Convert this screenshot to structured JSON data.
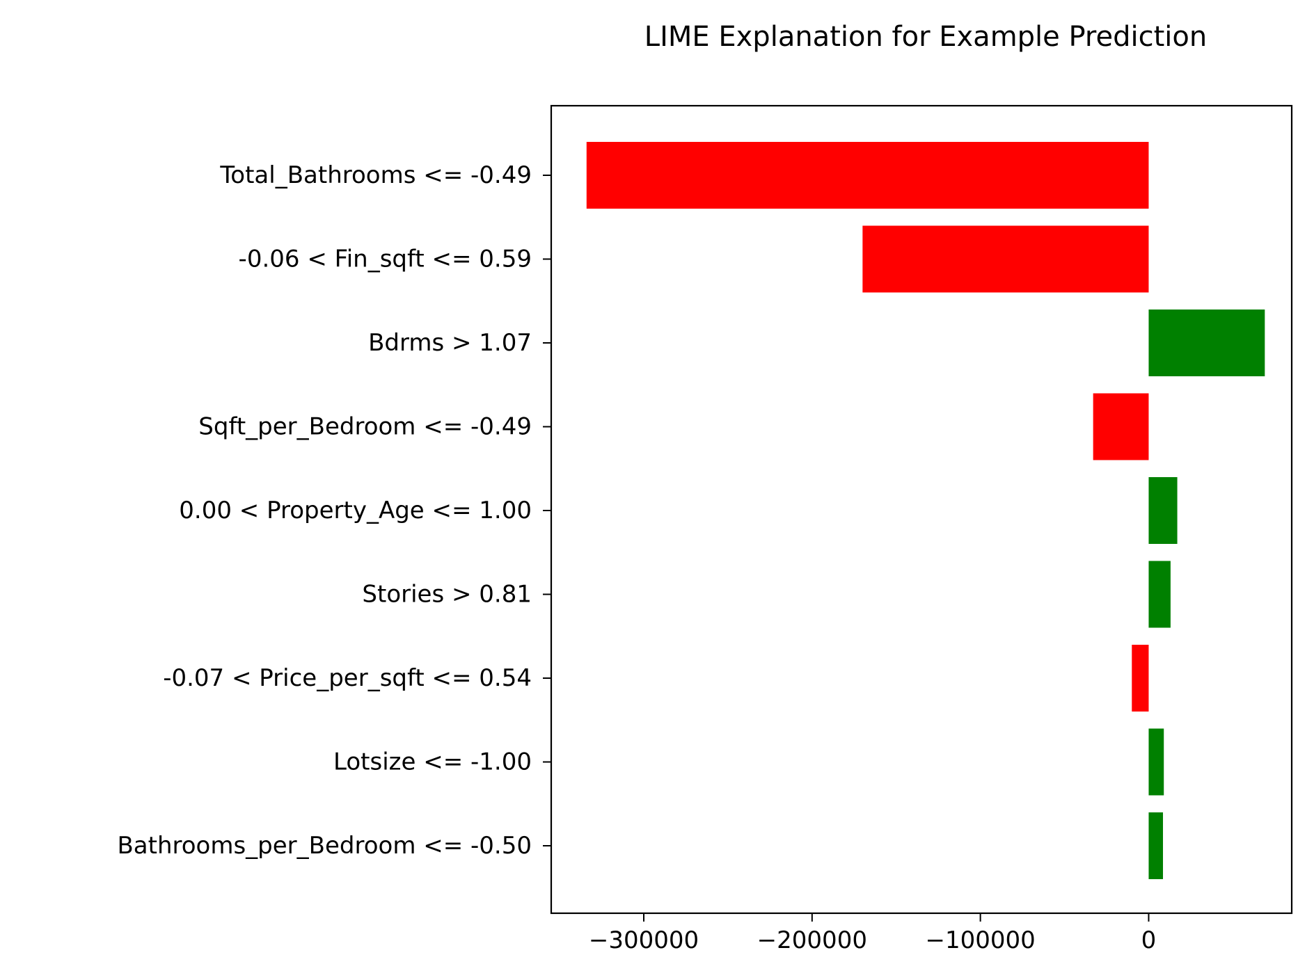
{
  "chart_data": {
    "type": "bar",
    "orientation": "horizontal",
    "title": "LIME Explanation for Example Prediction",
    "xlabel": "",
    "ylabel": "",
    "xlim": [
      -355000,
      85000
    ],
    "xticks": [
      -300000,
      -200000,
      -100000,
      0
    ],
    "xtick_labels": [
      "−300000",
      "−200000",
      "−100000",
      "0"
    ],
    "grid": false,
    "categories": [
      "Total_Bathrooms <= -0.49",
      "-0.06 < Fin_sqft <= 0.59",
      "Bdrms > 1.07",
      "Sqft_per_Bedroom <= -0.49",
      "0.00 < Property_Age <= 1.00",
      "Stories > 0.81",
      "-0.07 < Price_per_sqft <= 0.54",
      "Lotsize <= -1.00",
      "Bathrooms_per_Bedroom <= -0.50"
    ],
    "values": [
      -334000,
      -170000,
      69000,
      -33000,
      17000,
      13000,
      -10000,
      9000,
      8500
    ],
    "colors": {
      "positive": "#008000",
      "negative": "#ff0000"
    }
  }
}
